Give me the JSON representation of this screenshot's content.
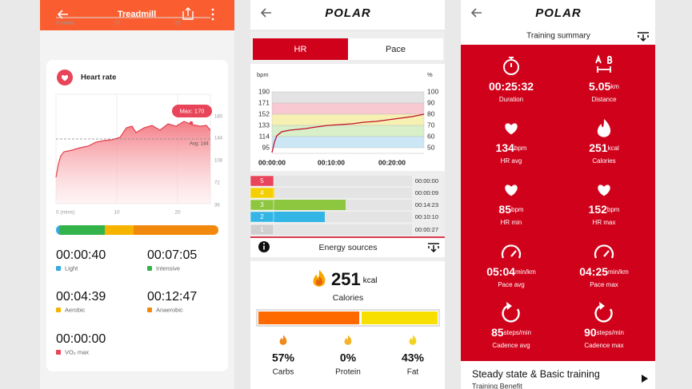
{
  "treadmill": {
    "header": {
      "title": "Treadmill"
    },
    "top_axis": [
      "0 (mins)",
      "10",
      "20"
    ],
    "heart_rate": {
      "title": "Heart rate",
      "y_ticks": [
        "180",
        "144",
        "108",
        "72",
        "36"
      ],
      "x_ticks": [
        "0 (mins)",
        "10",
        "20"
      ],
      "max_label": "Max: 170",
      "avg_label": "Avg: 144"
    },
    "zones": [
      {
        "time": "00:00:40",
        "label": "Light"
      },
      {
        "time": "00:07:05",
        "label": "Intensive"
      },
      {
        "time": "00:04:39",
        "label": "Aerobic"
      },
      {
        "time": "00:12:47",
        "label": "Anaerobic"
      },
      {
        "time": "00:00:00",
        "label": "VO₂ max"
      }
    ]
  },
  "hr_screen": {
    "logo": "POLAR",
    "tabs": [
      "HR",
      "Pace"
    ],
    "chart": {
      "left_unit": "bpm",
      "right_unit": "%",
      "left_ticks": [
        "190",
        "171",
        "152",
        "133",
        "114",
        "95"
      ],
      "right_ticks": [
        "100",
        "90",
        "80",
        "70",
        "60",
        "50"
      ],
      "x_ticks": [
        "00:00:00",
        "00:10:00",
        "00:20:00"
      ]
    },
    "zones": [
      {
        "zone": "5",
        "time": "00:00:00"
      },
      {
        "zone": "4",
        "time": "00:00:09"
      },
      {
        "zone": "3",
        "time": "00:14:23"
      },
      {
        "zone": "2",
        "time": "00:10:10"
      },
      {
        "zone": "1",
        "time": "00:00:27"
      }
    ],
    "energy": {
      "title": "Energy sources",
      "calories": "251",
      "unit": "kcal",
      "label": "Calories",
      "sources": [
        {
          "percent": "57%",
          "label": "Carbs"
        },
        {
          "percent": "0%",
          "label": "Protein"
        },
        {
          "percent": "43%",
          "label": "Fat"
        }
      ]
    }
  },
  "summary": {
    "logo": "POLAR",
    "title": "Training summary",
    "metrics": [
      {
        "value": "00:25:32",
        "label": "Duration"
      },
      {
        "value": "5.05",
        "unit": "km",
        "label": "Distance"
      },
      {
        "value": "134",
        "unit": "bpm",
        "label": "HR avg"
      },
      {
        "value": "251",
        "unit": "kcal",
        "label": "Calories"
      },
      {
        "value": "85",
        "unit": "bpm",
        "label": "HR min"
      },
      {
        "value": "152",
        "unit": "bpm",
        "label": "HR max"
      },
      {
        "value": "05:04",
        "unit": "min/km",
        "label": "Pace avg"
      },
      {
        "value": "04:25",
        "unit": "min/km",
        "label": "Pace max"
      },
      {
        "value": "85",
        "unit": "steps/min",
        "label": "Cadence avg"
      },
      {
        "value": "90",
        "unit": "steps/min",
        "label": "Cadence max"
      }
    ],
    "benefit": {
      "title": "Steady state & Basic training",
      "label": "Training Benefit"
    }
  }
}
